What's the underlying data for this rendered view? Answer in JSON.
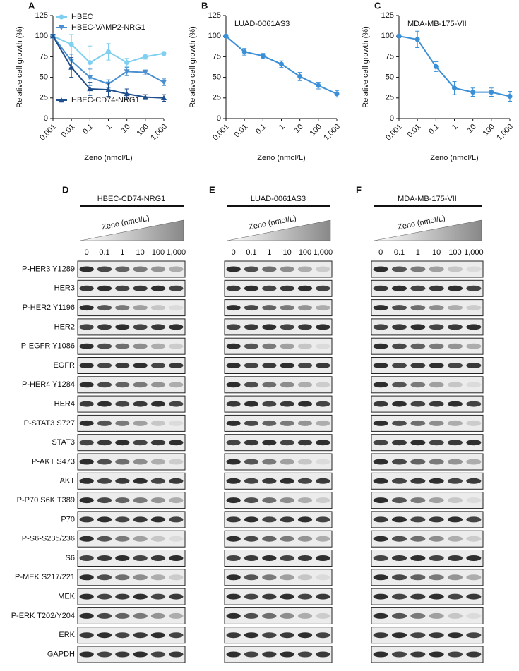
{
  "chart_data": [
    {
      "type": "line",
      "panel": "A",
      "xlabel": "Zeno (nmol/L)",
      "ylabel": "Relative cell growth (%)",
      "log_x": true,
      "grid": false,
      "x": [
        0.001,
        0.01,
        0.1,
        1,
        10,
        100,
        1000
      ],
      "xlim": [
        0.001,
        1000
      ],
      "xticks": [
        0.001,
        0.01,
        0.1,
        1,
        10,
        100,
        {
          "value": 1000,
          "label": "1,000"
        }
      ],
      "ylim": [
        0,
        125
      ],
      "yticks": [
        0,
        25,
        50,
        75,
        100,
        125
      ],
      "series": [
        {
          "name": "HBEC",
          "color": "#7fcff0",
          "marker": "circle",
          "values": [
            100,
            90,
            68,
            81,
            68,
            75,
            79
          ],
          "errors": [
            2,
            12,
            20,
            10,
            5,
            3,
            2
          ]
        },
        {
          "name": "HBEC-VAMP2-NRG1",
          "color": "#4a8fd0",
          "marker": "triangle-down",
          "values": [
            100,
            70,
            50,
            42,
            57,
            56,
            44
          ],
          "errors": [
            2,
            8,
            10,
            5,
            5,
            3,
            4
          ]
        },
        {
          "name": "HBEC-CD74-NRG1",
          "color": "#1f4e8c",
          "marker": "triangle-up",
          "values": [
            100,
            62,
            36,
            35,
            30,
            26,
            25
          ],
          "errors": [
            2,
            12,
            8,
            8,
            6,
            3,
            4
          ]
        }
      ]
    },
    {
      "type": "line",
      "panel": "B",
      "title": "LUAD-0061AS3",
      "xlabel": "Zeno (nmol/L)",
      "ylabel": "Relative cell growth (%)",
      "log_x": true,
      "grid": false,
      "x": [
        0.001,
        0.01,
        0.1,
        1,
        10,
        100,
        1000
      ],
      "xlim": [
        0.001,
        1000
      ],
      "xticks": [
        0.001,
        0.01,
        0.1,
        1,
        10,
        100,
        {
          "value": 1000,
          "label": "1,000"
        }
      ],
      "ylim": [
        0,
        125
      ],
      "yticks": [
        0,
        25,
        50,
        75,
        100,
        125
      ],
      "series": [
        {
          "color": "#3a8fd6",
          "marker": "circle",
          "values": [
            100,
            81,
            76,
            66,
            51,
            40,
            30
          ],
          "errors": [
            2,
            4,
            3,
            4,
            5,
            4,
            4
          ]
        }
      ]
    },
    {
      "type": "line",
      "panel": "C",
      "title": "MDA-MB-175-VII",
      "xlabel": "Zeno (nmol/L)",
      "ylabel": "Relative cell growth (%)",
      "log_x": true,
      "grid": false,
      "x": [
        0.001,
        0.01,
        0.1,
        1,
        10,
        100,
        1000
      ],
      "xlim": [
        0.001,
        1000
      ],
      "xticks": [
        0.001,
        0.01,
        0.1,
        1,
        10,
        100,
        {
          "value": 1000,
          "label": "1,000"
        }
      ],
      "ylim": [
        0,
        125
      ],
      "yticks": [
        0,
        25,
        50,
        75,
        100,
        125
      ],
      "series": [
        {
          "color": "#3a8fd6",
          "marker": "circle",
          "values": [
            100,
            96,
            63,
            37,
            32,
            32,
            27
          ],
          "errors": [
            2,
            10,
            6,
            8,
            5,
            5,
            6
          ]
        }
      ]
    }
  ],
  "blot_rows": [
    "P-HER3 Y1289",
    "HER3",
    "P-HER2 Y1196",
    "HER2",
    "P-EGFR Y1086",
    "EGFR",
    "P-HER4 Y1284",
    "HER4",
    "P-STAT3 S727",
    "STAT3",
    "P-AKT S473",
    "AKT",
    "P-P70 S6K T389",
    "P70",
    "P-S6-S235/236",
    "S6",
    "P-MEK S217/221",
    "MEK",
    "P-ERK T202/Y204",
    "ERK",
    "GAPDH"
  ],
  "blot_panels": [
    {
      "panel": "D",
      "title": "HBEC-CD74-NRG1",
      "dose_label": "Zeno (nmol/L)",
      "doses": [
        "0",
        "0.1",
        "1",
        "10",
        "100",
        "1,000"
      ]
    },
    {
      "panel": "E",
      "title": "LUAD-0061AS3",
      "dose_label": "Zeno (nmol/L)",
      "doses": [
        "0",
        "0.1",
        "1",
        "10",
        "100",
        "1,000"
      ]
    },
    {
      "panel": "F",
      "title": "MDA-MB-175-VII",
      "dose_label": "Zeno (nmol/L)",
      "doses": [
        "0",
        "0.1",
        "1",
        "10",
        "100",
        "1,000"
      ]
    }
  ]
}
